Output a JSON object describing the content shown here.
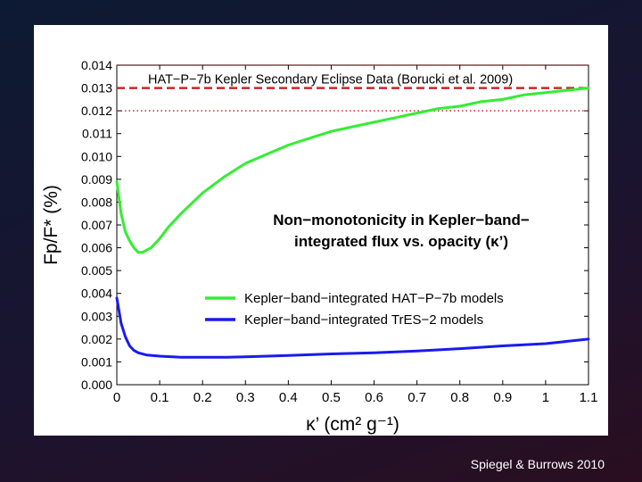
{
  "credit": "Spiegel & Burrows 2010",
  "chart_data": {
    "type": "line",
    "title": "",
    "xlabel": "κ’ (cm² g⁻¹)",
    "ylabel": "Fp/F* (%)",
    "xlim": [
      0,
      1.1
    ],
    "ylim": [
      0,
      0.014
    ],
    "x_ticks": [
      "0",
      "0.1",
      "0.2",
      "0.3",
      "0.4",
      "0.5",
      "0.6",
      "0.7",
      "0.8",
      "0.9",
      "1",
      "1.1"
    ],
    "y_ticks": [
      "0.000",
      "0.001",
      "0.002",
      "0.003",
      "0.004",
      "0.005",
      "0.006",
      "0.007",
      "0.008",
      "0.009",
      "0.010",
      "0.011",
      "0.012",
      "0.013",
      "0.014"
    ],
    "grid": false,
    "annotation_line1": "Non−monotonicity in Kepler−band−",
    "annotation_line2": "integrated flux vs. opacity (κ’)",
    "reference_label": "HAT−P−7b Kepler Secondary Eclipse Data (Borucki et al. 2009)",
    "reference": {
      "value": 0.013,
      "lower": 0.012,
      "upper": 0.014,
      "color": "#c62828"
    },
    "legend_position": "center-right",
    "series": [
      {
        "name": "Kepler−band−integrated HAT−P−7b models",
        "color": "#33ee33",
        "x": [
          0,
          0.01,
          0.02,
          0.03,
          0.04,
          0.05,
          0.06,
          0.07,
          0.08,
          0.1,
          0.12,
          0.15,
          0.2,
          0.25,
          0.3,
          0.35,
          0.4,
          0.45,
          0.5,
          0.55,
          0.6,
          0.65,
          0.7,
          0.75,
          0.8,
          0.85,
          0.9,
          0.95,
          1.0,
          1.05,
          1.1
        ],
        "y": [
          0.0089,
          0.0075,
          0.0067,
          0.0063,
          0.006,
          0.0058,
          0.0058,
          0.0059,
          0.006,
          0.0064,
          0.0069,
          0.0075,
          0.0084,
          0.0091,
          0.0097,
          0.0101,
          0.0105,
          0.0108,
          0.0111,
          0.0113,
          0.0115,
          0.0117,
          0.0119,
          0.0121,
          0.0122,
          0.0124,
          0.0125,
          0.0127,
          0.0128,
          0.0129,
          0.013
        ]
      },
      {
        "name": "Kepler−band−integrated TrES−2 models",
        "color": "#1a1aee",
        "x": [
          0,
          0.01,
          0.02,
          0.03,
          0.04,
          0.05,
          0.07,
          0.1,
          0.15,
          0.2,
          0.25,
          0.3,
          0.4,
          0.5,
          0.6,
          0.7,
          0.8,
          0.9,
          1.0,
          1.1
        ],
        "y": [
          0.0038,
          0.0027,
          0.0021,
          0.0017,
          0.0015,
          0.0014,
          0.0013,
          0.00125,
          0.0012,
          0.0012,
          0.0012,
          0.00122,
          0.00128,
          0.00135,
          0.0014,
          0.00148,
          0.00158,
          0.0017,
          0.0018,
          0.002
        ]
      }
    ]
  }
}
